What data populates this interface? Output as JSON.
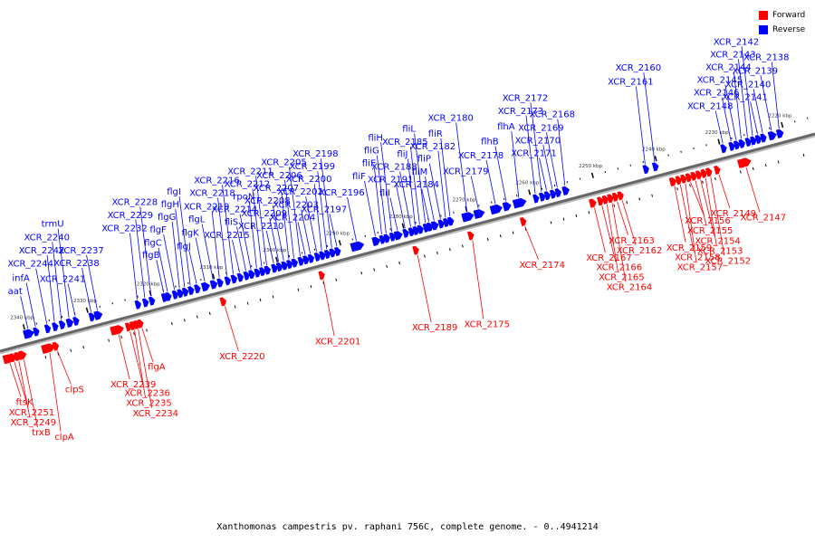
{
  "caption": "Xanthomonas campestris pv. raphani 756C, complete genome. - 0..4941214",
  "legend": [
    {
      "label": "Forward",
      "color": "#ff0000"
    },
    {
      "label": "Reverse",
      "color": "#0000ff"
    }
  ],
  "colors": {
    "forward": "#ff0000",
    "reverse": "#0000ff",
    "backbone": "#666666"
  },
  "ticks": [
    {
      "label": "2340 kbp",
      "pos": 2340
    },
    {
      "label": "2330 kbp",
      "pos": 2330
    },
    {
      "label": "2320 kbp",
      "pos": 2320
    },
    {
      "label": "2310 kbp",
      "pos": 2310
    },
    {
      "label": "2300 kbp",
      "pos": 2300
    },
    {
      "label": "2290 kbp",
      "pos": 2290
    },
    {
      "label": "2280 kbp",
      "pos": 2280
    },
    {
      "label": "2270 kbp",
      "pos": 2270
    },
    {
      "label": "2260 kbp",
      "pos": 2260
    },
    {
      "label": "2250 kbp",
      "pos": 2250
    },
    {
      "label": "2240 kbp",
      "pos": 2240
    },
    {
      "label": "2230 kbp",
      "pos": 2230
    },
    {
      "label": "2220 kbp",
      "pos": 2220
    }
  ],
  "genes_reverse": [
    {
      "label": "aat",
      "pos": 2339.5,
      "len": 1.6
    },
    {
      "label": "infA",
      "pos": 2338.3,
      "len": 0.5
    },
    {
      "label": "XCR_2244",
      "pos": 2336.5,
      "len": 0.8
    },
    {
      "label": "XCR_2242",
      "pos": 2335.3,
      "len": 0.8
    },
    {
      "label": "XCR_2240",
      "pos": 2334.2,
      "len": 0.6
    },
    {
      "label": "trmU",
      "pos": 2333.0,
      "len": 1.0
    },
    {
      "label": "XCR_2241",
      "pos": 2332.0,
      "len": 0.8
    },
    {
      "label": "XCR_2238",
      "pos": 2329.5,
      "len": 0.8
    },
    {
      "label": "XCR_2237",
      "pos": 2328.5,
      "len": 1.2
    },
    {
      "label": "XCR_2232",
      "pos": 2322.2,
      "len": 0.5
    },
    {
      "label": "XCR_2229",
      "pos": 2321.0,
      "len": 0.8
    },
    {
      "label": "XCR_2228",
      "pos": 2320.0,
      "len": 0.8
    },
    {
      "label": "flgB",
      "pos": 2318.0,
      "len": 0.5
    },
    {
      "label": "flgC",
      "pos": 2317.4,
      "len": 0.5
    },
    {
      "label": "flgF",
      "pos": 2316.3,
      "len": 0.6
    },
    {
      "label": "flgG",
      "pos": 2315.5,
      "len": 0.6
    },
    {
      "label": "flgH",
      "pos": 2314.7,
      "len": 0.6
    },
    {
      "label": "flgI",
      "pos": 2313.8,
      "len": 0.8
    },
    {
      "label": "flgJ",
      "pos": 2312.8,
      "len": 0.8
    },
    {
      "label": "flgK",
      "pos": 2311.5,
      "len": 1.2
    },
    {
      "label": "flgL",
      "pos": 2310.2,
      "len": 1.0
    },
    {
      "label": "XCR_2219",
      "pos": 2309.2,
      "len": 0.8
    },
    {
      "label": "XCR_2218",
      "pos": 2308.0,
      "len": 0.8
    },
    {
      "label": "XCR_2216",
      "pos": 2307.0,
      "len": 0.8
    },
    {
      "label": "XCR_2215",
      "pos": 2306.0,
      "len": 0.8
    },
    {
      "label": "fliS",
      "pos": 2305.0,
      "len": 0.5
    },
    {
      "label": "XCR_2214",
      "pos": 2304.2,
      "len": 0.8
    },
    {
      "label": "rpoN",
      "pos": 2303.3,
      "len": 0.6
    },
    {
      "label": "XCR_2212",
      "pos": 2302.5,
      "len": 0.6
    },
    {
      "label": "XCR_2211",
      "pos": 2301.7,
      "len": 0.8
    },
    {
      "label": "XCR_2210",
      "pos": 2300.6,
      "len": 0.6
    },
    {
      "label": "XCR_2209",
      "pos": 2299.8,
      "len": 0.6
    },
    {
      "label": "XCR_2208",
      "pos": 2299.0,
      "len": 0.6
    },
    {
      "label": "XCR_2207",
      "pos": 2298.2,
      "len": 0.6
    },
    {
      "label": "XCR_2206",
      "pos": 2297.4,
      "len": 0.6
    },
    {
      "label": "XCR_2205",
      "pos": 2296.4,
      "len": 0.6
    },
    {
      "label": "XCR_2204",
      "pos": 2295.6,
      "len": 0.6
    },
    {
      "label": "XCR_2203",
      "pos": 2294.8,
      "len": 0.6
    },
    {
      "label": "XCR_2202",
      "pos": 2293.8,
      "len": 0.6
    },
    {
      "label": "XCR_2200",
      "pos": 2293.0,
      "len": 0.6
    },
    {
      "label": "XCR_2199",
      "pos": 2292.2,
      "len": 0.6
    },
    {
      "label": "XCR_2198",
      "pos": 2291.4,
      "len": 0.6
    },
    {
      "label": "XCR_2197",
      "pos": 2290.6,
      "len": 0.6
    },
    {
      "label": "XCR_2196",
      "pos": 2287.5,
      "len": 2.0
    },
    {
      "label": "fliF",
      "pos": 2284.5,
      "len": 1.2
    },
    {
      "label": "fliE",
      "pos": 2283.5,
      "len": 0.5
    },
    {
      "label": "fliG",
      "pos": 2282.8,
      "len": 0.8
    },
    {
      "label": "fliH",
      "pos": 2281.9,
      "len": 0.6
    },
    {
      "label": "fliI",
      "pos": 2281.0,
      "len": 1.2
    },
    {
      "label": "XCR_2191",
      "pos": 2279.8,
      "len": 0.8
    },
    {
      "label": "XCR_2188",
      "pos": 2278.9,
      "len": 0.6
    },
    {
      "label": "fliJ",
      "pos": 2278.2,
      "len": 0.5
    },
    {
      "label": "XCR_2185",
      "pos": 2277.5,
      "len": 0.8
    },
    {
      "label": "fliL",
      "pos": 2276.6,
      "len": 0.5
    },
    {
      "label": "XCR_2184",
      "pos": 2276.0,
      "len": 0.6
    },
    {
      "label": "fliM",
      "pos": 2275.2,
      "len": 1.0
    },
    {
      "label": "fliP",
      "pos": 2274.2,
      "len": 0.6
    },
    {
      "label": "XCR_2182",
      "pos": 2273.4,
      "len": 0.6
    },
    {
      "label": "fliR",
      "pos": 2272.7,
      "len": 0.6
    },
    {
      "label": "XCR_2180",
      "pos": 2270.0,
      "len": 1.8
    },
    {
      "label": "XCR_2179",
      "pos": 2268.2,
      "len": 1.6
    },
    {
      "label": "XCR_2178",
      "pos": 2265.5,
      "len": 1.8
    },
    {
      "label": "flhB",
      "pos": 2263.8,
      "len": 1.2
    },
    {
      "label": "flhA",
      "pos": 2261.8,
      "len": 2.0
    },
    {
      "label": "XCR_2173",
      "pos": 2259.2,
      "len": 0.8
    },
    {
      "label": "XCR_2172",
      "pos": 2258.2,
      "len": 0.6
    },
    {
      "label": "XCR_2171",
      "pos": 2257.4,
      "len": 0.8
    },
    {
      "label": "XCR_2170",
      "pos": 2256.5,
      "len": 0.6
    },
    {
      "label": "XCR_2169",
      "pos": 2255.7,
      "len": 0.6
    },
    {
      "label": "XCR_2168",
      "pos": 2254.5,
      "len": 1.0
    },
    {
      "label": "XCR_2161",
      "pos": 2241.8,
      "len": 0.4
    },
    {
      "label": "XCR_2160",
      "pos": 2240.3,
      "len": 0.8
    },
    {
      "label": "XCR_2148",
      "pos": 2229.5,
      "len": 0.4
    },
    {
      "label": "XCR_2146",
      "pos": 2228.2,
      "len": 0.6
    },
    {
      "label": "XCR_2145",
      "pos": 2227.4,
      "len": 0.6
    },
    {
      "label": "XCR_2144",
      "pos": 2226.6,
      "len": 0.6
    },
    {
      "label": "XCR_2143",
      "pos": 2225.6,
      "len": 0.6
    },
    {
      "label": "XCR_2142",
      "pos": 2224.8,
      "len": 0.6
    },
    {
      "label": "XCR_2141",
      "pos": 2224.0,
      "len": 0.6
    },
    {
      "label": "XCR_2140",
      "pos": 2223.2,
      "len": 0.6
    },
    {
      "label": "XCR_2139",
      "pos": 2221.8,
      "len": 1.2
    },
    {
      "label": "XCR_2138",
      "pos": 2220.6,
      "len": 1.0
    }
  ],
  "genes_forward": [
    {
      "label": "ftsK",
      "pos": 2343.5,
      "len": 1.6
    },
    {
      "label": "XCR_2251",
      "pos": 2342.8,
      "len": 0.4
    },
    {
      "label": "XCR_2249",
      "pos": 2342.1,
      "len": 0.5
    },
    {
      "label": "trxB",
      "pos": 2341.3,
      "len": 1.2
    },
    {
      "label": "clpA",
      "pos": 2337.2,
      "len": 2.0
    },
    {
      "label": "clpS",
      "pos": 2336.0,
      "len": 0.4
    },
    {
      "label": "XCR_2239",
      "pos": 2326.3,
      "len": 2.0
    },
    {
      "label": "XCR_2236",
      "pos": 2324.5,
      "len": 0.5
    },
    {
      "label": "XCR_2235",
      "pos": 2323.8,
      "len": 0.4
    },
    {
      "label": "XCR_2234",
      "pos": 2323.2,
      "len": 0.4
    },
    {
      "label": "flgA",
      "pos": 2322.6,
      "len": 0.6
    },
    {
      "label": "XCR_2220",
      "pos": 2309.5,
      "len": 0.4
    },
    {
      "label": "XCR_2201",
      "pos": 2293.9,
      "len": 0.4
    },
    {
      "label": "XCR_2189",
      "pos": 2279.0,
      "len": 0.4
    },
    {
      "label": "XCR_2175",
      "pos": 2270.3,
      "len": 0.4
    },
    {
      "label": "XCR_2174",
      "pos": 2262.0,
      "len": 0.4
    },
    {
      "label": "XCR_2167",
      "pos": 2251.0,
      "len": 1.0
    },
    {
      "label": "XCR_2166",
      "pos": 2249.8,
      "len": 0.6
    },
    {
      "label": "XCR_2165",
      "pos": 2249.0,
      "len": 0.6
    },
    {
      "label": "XCR_2164",
      "pos": 2248.2,
      "len": 0.6
    },
    {
      "label": "XCR_2163",
      "pos": 2247.4,
      "len": 0.6
    },
    {
      "label": "XCR_2162",
      "pos": 2246.6,
      "len": 0.6
    },
    {
      "label": "XCR_2159",
      "pos": 2238.3,
      "len": 1.0
    },
    {
      "label": "XCR_2158",
      "pos": 2237.4,
      "len": 0.6
    },
    {
      "label": "XCR_2157",
      "pos": 2236.6,
      "len": 0.6
    },
    {
      "label": "XCR_2156",
      "pos": 2235.8,
      "len": 0.6
    },
    {
      "label": "XCR_2155",
      "pos": 2235.0,
      "len": 0.6
    },
    {
      "label": "XCR_2154",
      "pos": 2234.2,
      "len": 0.6
    },
    {
      "label": "XCR_2153",
      "pos": 2233.4,
      "len": 0.6
    },
    {
      "label": "XCR_2152",
      "pos": 2232.6,
      "len": 0.6
    },
    {
      "label": "XCR_2149",
      "pos": 2231.3,
      "len": 0.5
    },
    {
      "label": "XCR_2147",
      "pos": 2227.0,
      "len": 2.0
    }
  ]
}
